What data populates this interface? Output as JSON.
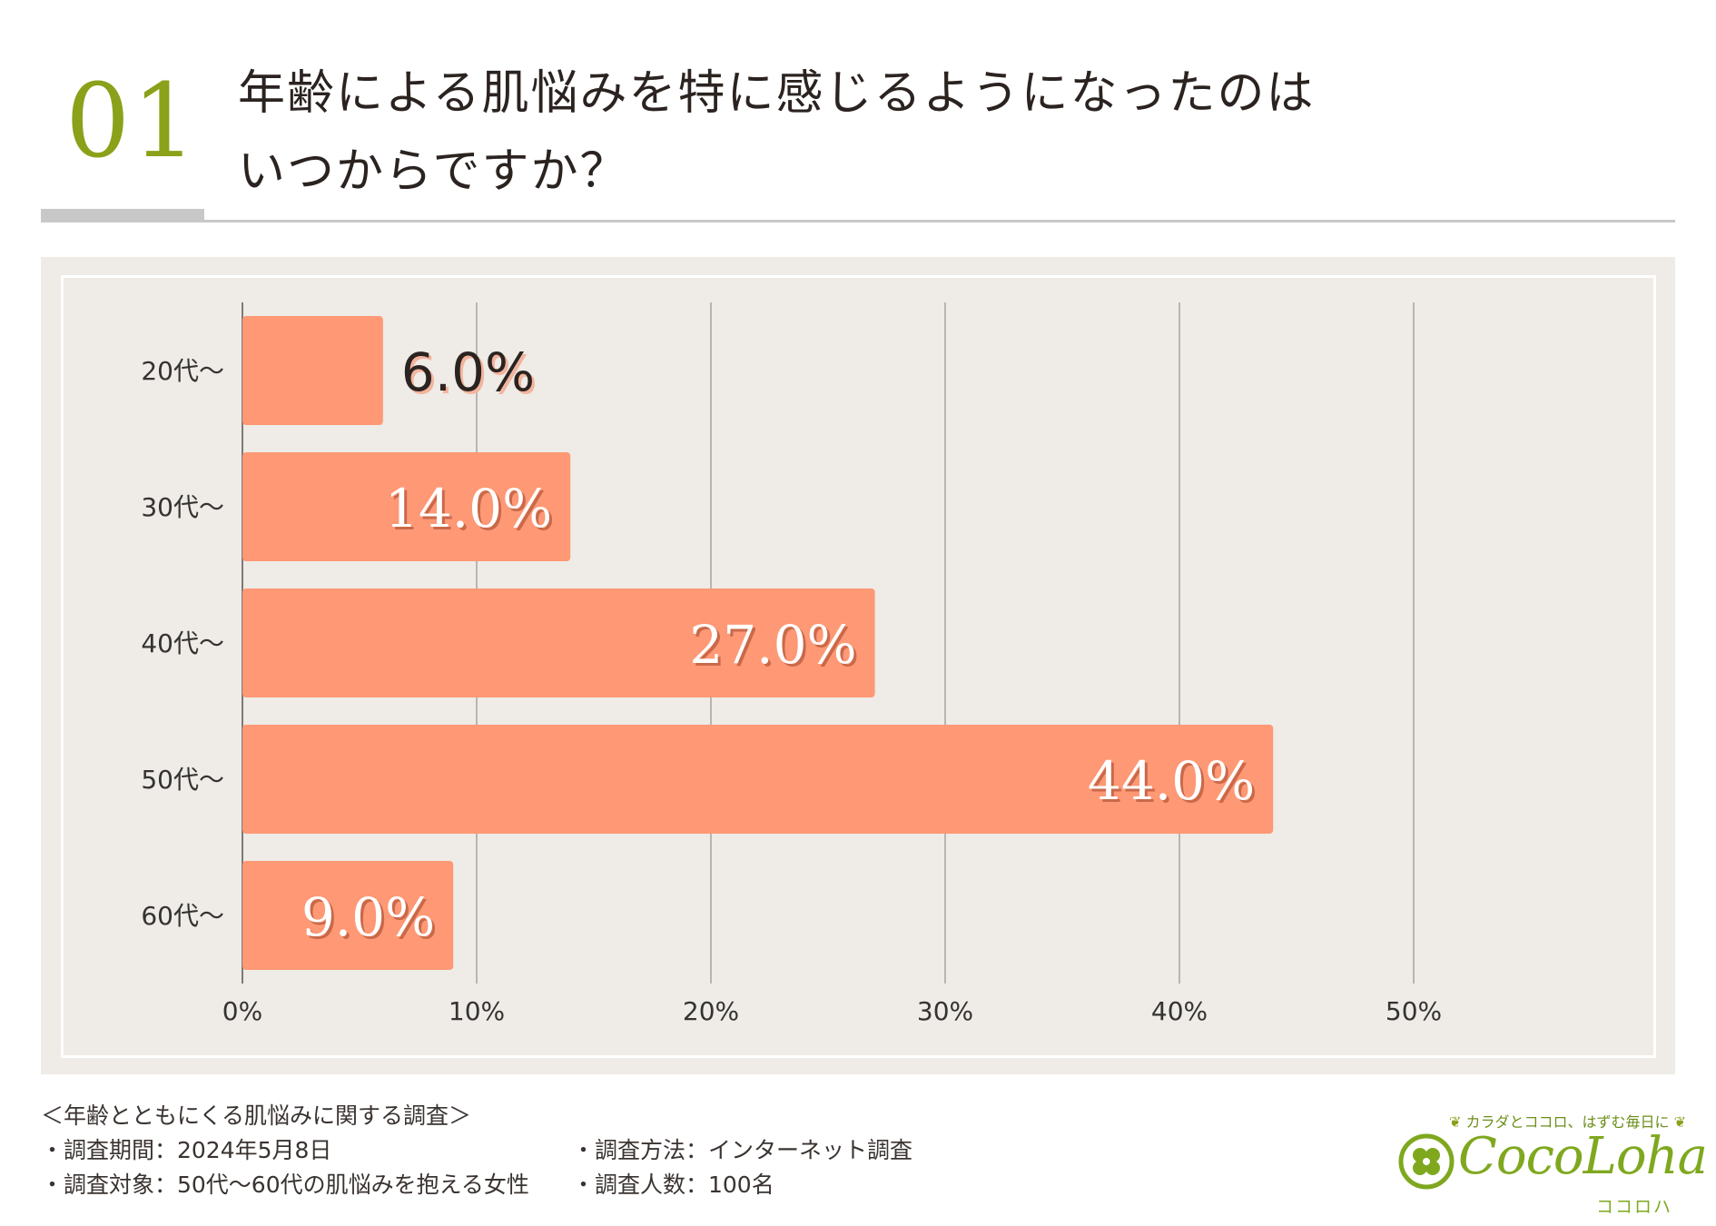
{
  "header": {
    "number": "01",
    "title_line1": "年齢による肌悩みを特に感じるようになったのは",
    "title_line2": "いつからですか？"
  },
  "chart_data": {
    "type": "bar",
    "orientation": "horizontal",
    "categories": [
      "20代～",
      "30代～",
      "40代～",
      "50代～",
      "60代～"
    ],
    "values": [
      6.0,
      14.0,
      27.0,
      44.0,
      9.0
    ],
    "value_labels": [
      "6.0%",
      "14.0%",
      "27.0%",
      "44.0%",
      "9.0%"
    ],
    "x_ticks": [
      "0%",
      "10%",
      "20%",
      "30%",
      "40%",
      "50%"
    ],
    "xlim": [
      0,
      50
    ],
    "grid": true,
    "bar_color": "#fe9875",
    "title": "",
    "xlabel": "",
    "ylabel": ""
  },
  "footer": {
    "survey_title": "＜年齢とともにくる肌悩みに関する調査＞",
    "period": "・調査期間：2024年5月8日",
    "method": "・調査方法：インターネット調査",
    "target": "・調査対象：50代～60代の肌悩みを抱える女性",
    "count": "・調査人数：100名"
  },
  "logo": {
    "tagline": "カラダとココロ、はずむ毎日に",
    "name": "CocoLoha",
    "kana": "ココロハ",
    "icon": "clover-leaf-icon"
  },
  "colors": {
    "accent_green": "#8aa11a",
    "panel_bg": "#efebe6",
    "bar": "#fe9875"
  }
}
